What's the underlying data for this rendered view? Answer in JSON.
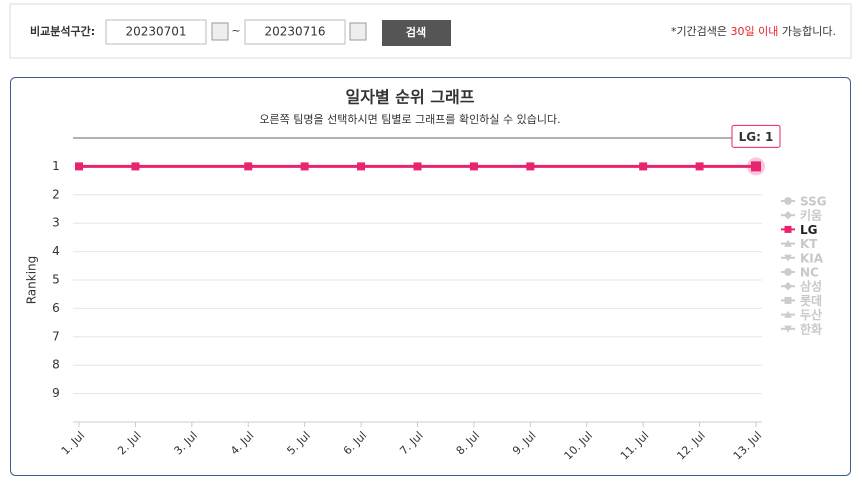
{
  "search": {
    "label": "비교분석구간:",
    "start": "20230701",
    "separator": "~",
    "end": "20230716",
    "button": "검색",
    "note": [
      "*기간검색은 ",
      "30일 이내",
      " 가능합니다."
    ]
  },
  "chart_data": {
    "type": "line",
    "title": "일자별 순위 그래프",
    "subtitle": "오른쪽 팀명을 선택하시면 팀별로 그래프를 확인하실 수 있습니다.",
    "y_label": "Ranking",
    "categories": [
      "1. Jul",
      "2. Jul",
      "3. Jul",
      "4. Jul",
      "5. Jul",
      "6. Jul",
      "7. Jul",
      "8. Jul",
      "9. Jul",
      "10. Jul",
      "11. Jul",
      "12. Jul",
      "13. Jul"
    ],
    "ylim": [
      0,
      10
    ],
    "y_reversed": true,
    "yticks": [
      1,
      2,
      3,
      4,
      5,
      6,
      7,
      8,
      9
    ],
    "grid": true,
    "connect_gaps": true,
    "legend": "right",
    "tooltip": "LG: 1",
    "series": [
      {
        "name": "SSG",
        "marker": "circle",
        "visible": false,
        "values": [
          null,
          null,
          null,
          null,
          null,
          null,
          null,
          null,
          null,
          null,
          null,
          null,
          null
        ]
      },
      {
        "name": "키움",
        "marker": "diamond",
        "visible": false,
        "values": [
          null,
          null,
          null,
          null,
          null,
          null,
          null,
          null,
          null,
          null,
          null,
          null,
          null
        ]
      },
      {
        "name": "LG",
        "marker": "square",
        "visible": true,
        "color": "#e8236f",
        "values": [
          1,
          1,
          null,
          1,
          1,
          1,
          1,
          1,
          1,
          null,
          1,
          1,
          1
        ]
      },
      {
        "name": "KT",
        "marker": "triangle",
        "visible": false,
        "values": [
          null,
          null,
          null,
          null,
          null,
          null,
          null,
          null,
          null,
          null,
          null,
          null,
          null
        ]
      },
      {
        "name": "KIA",
        "marker": "triangle-down",
        "visible": false,
        "values": [
          null,
          null,
          null,
          null,
          null,
          null,
          null,
          null,
          null,
          null,
          null,
          null,
          null
        ]
      },
      {
        "name": "NC",
        "marker": "circle",
        "visible": false,
        "values": [
          null,
          null,
          null,
          null,
          null,
          null,
          null,
          null,
          null,
          null,
          null,
          null,
          null
        ]
      },
      {
        "name": "삼성",
        "marker": "diamond",
        "visible": false,
        "values": [
          null,
          null,
          null,
          null,
          null,
          null,
          null,
          null,
          null,
          null,
          null,
          null,
          null
        ]
      },
      {
        "name": "롯데",
        "marker": "square",
        "visible": false,
        "values": [
          null,
          null,
          null,
          null,
          null,
          null,
          null,
          null,
          null,
          null,
          null,
          null,
          null
        ]
      },
      {
        "name": "두산",
        "marker": "triangle",
        "visible": false,
        "values": [
          null,
          null,
          null,
          null,
          null,
          null,
          null,
          null,
          null,
          null,
          null,
          null,
          null
        ]
      },
      {
        "name": "한화",
        "marker": "triangle-down",
        "visible": false,
        "values": [
          null,
          null,
          null,
          null,
          null,
          null,
          null,
          null,
          null,
          null,
          null,
          null,
          null
        ]
      }
    ]
  }
}
